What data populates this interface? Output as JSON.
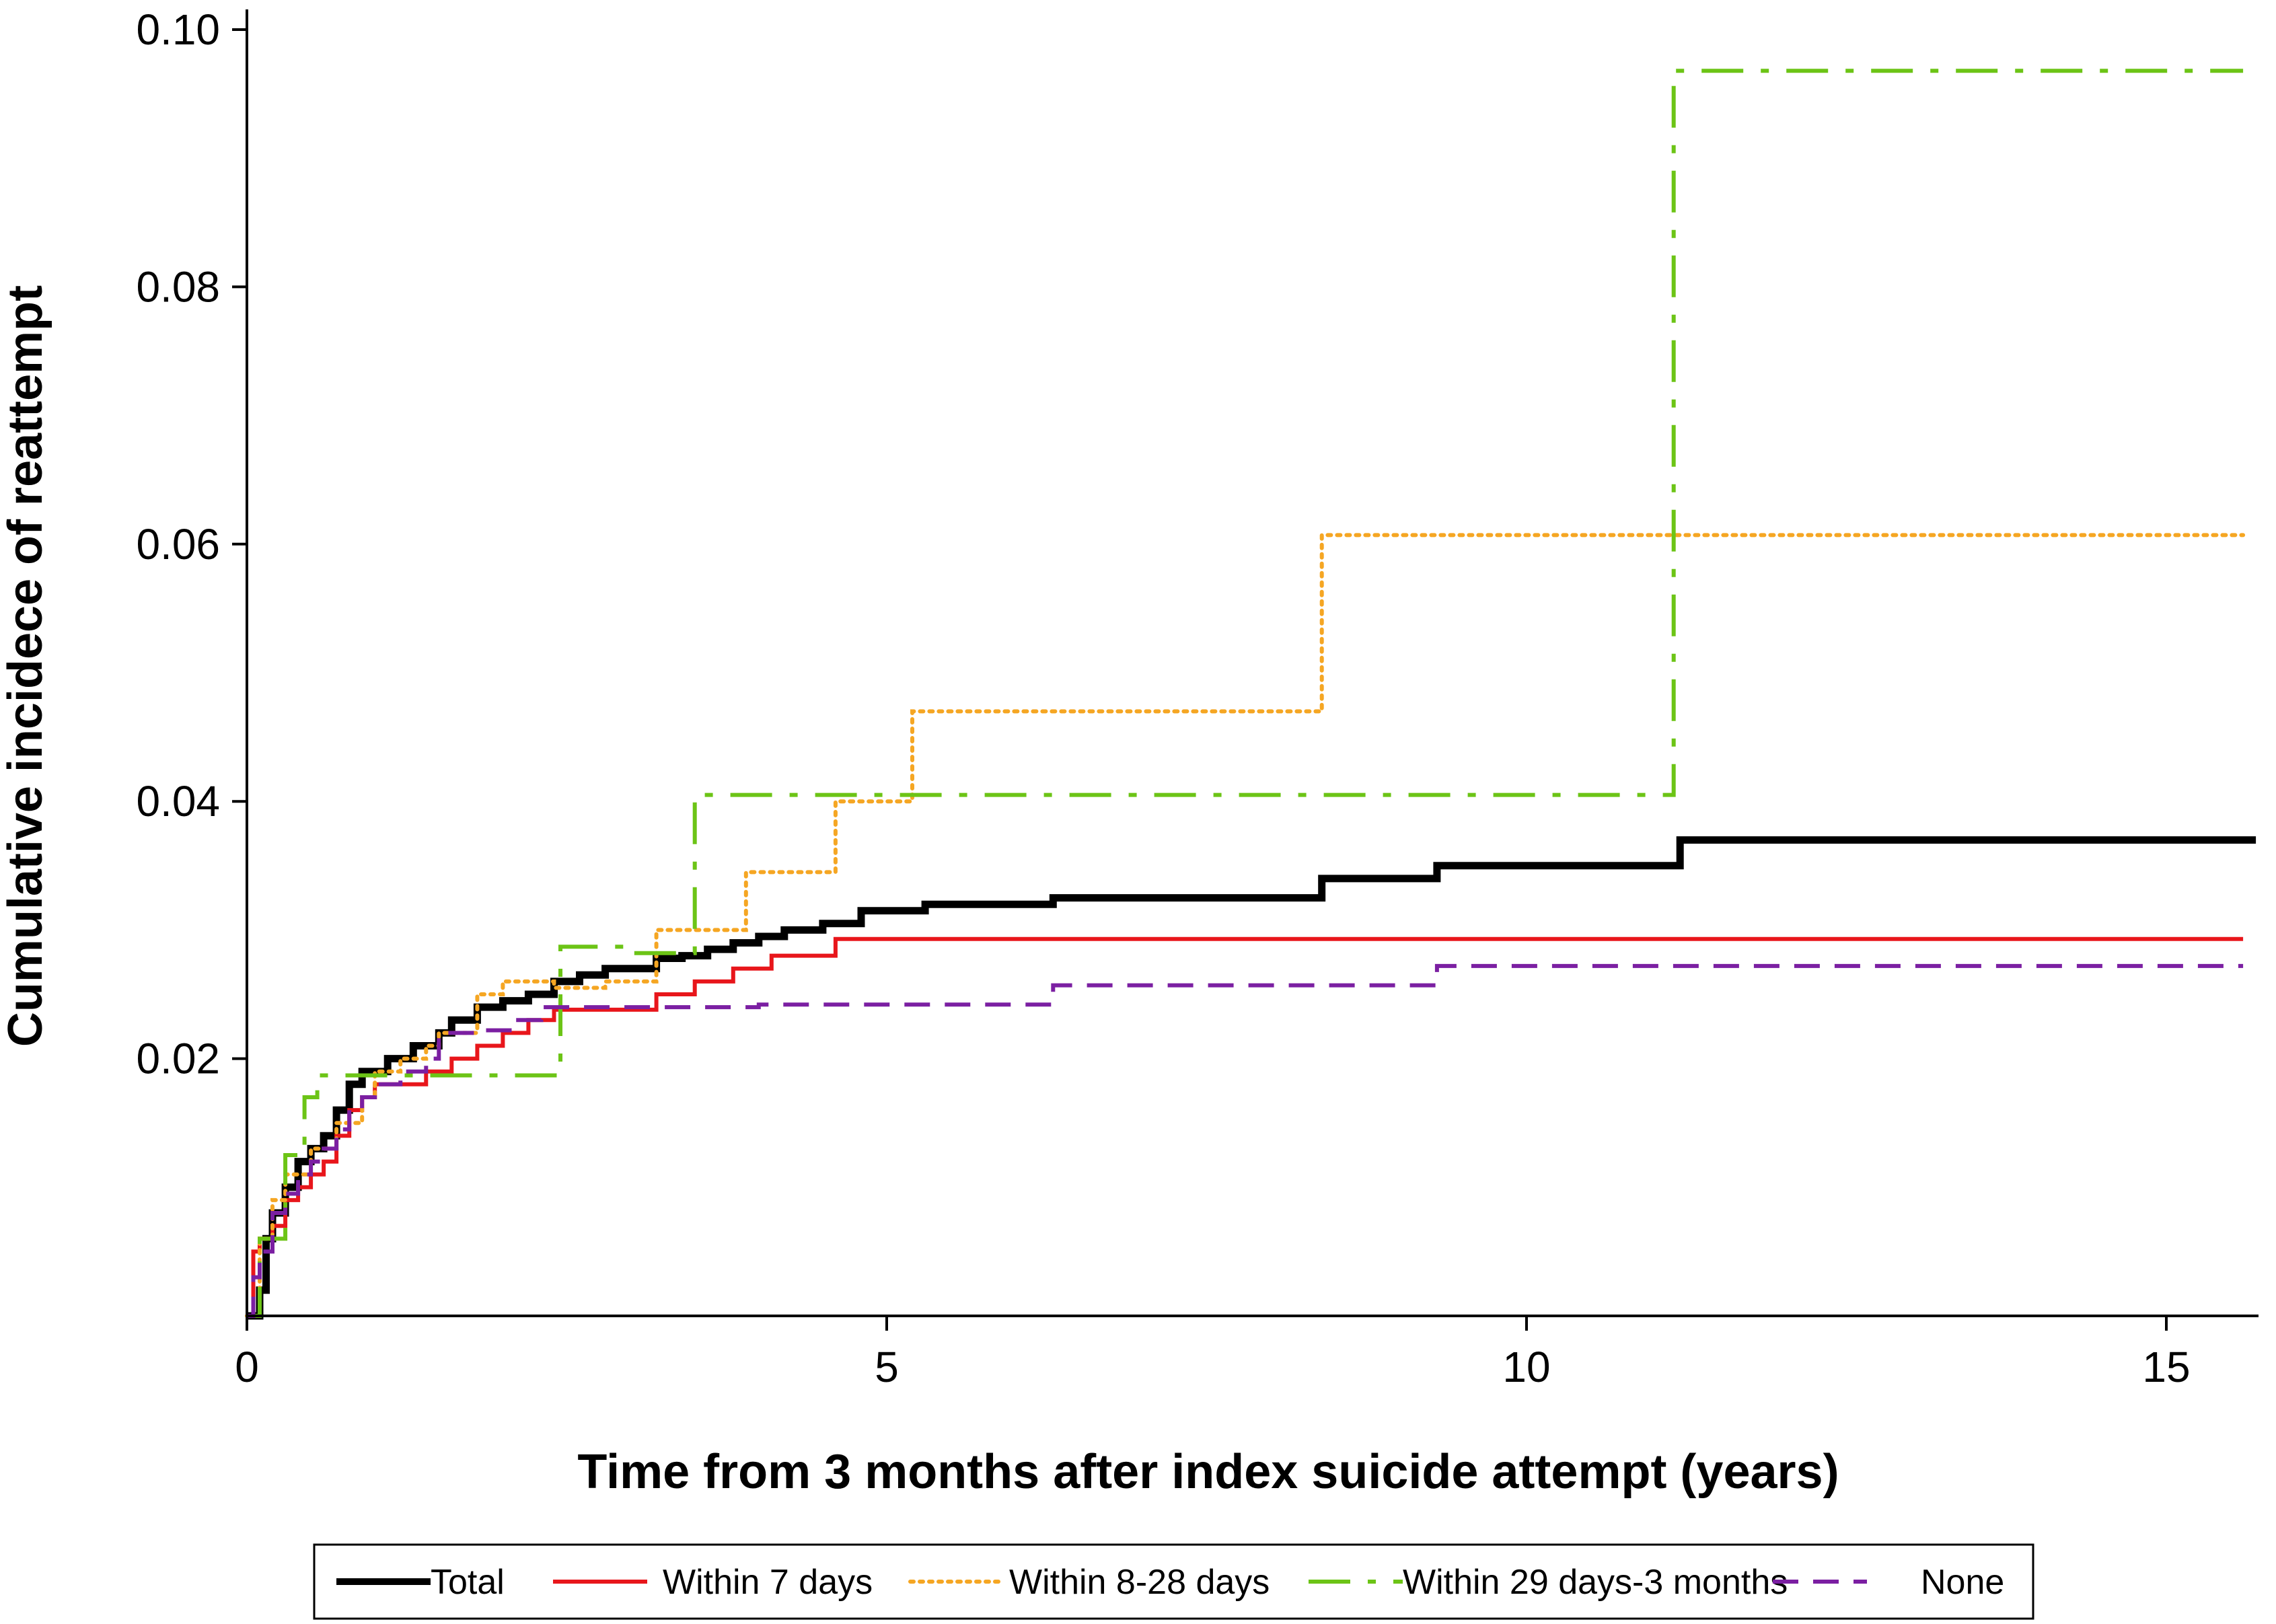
{
  "chart_data": {
    "type": "line",
    "step": true,
    "xlabel": "Time from 3 months after index suicide attempt (years)",
    "ylabel": "Cumulative incidece of reattempt",
    "xlim": [
      0,
      15.7
    ],
    "ylim": [
      0,
      0.1
    ],
    "xticks": [
      0,
      5,
      10,
      15
    ],
    "xtick_labels": [
      "0",
      "5",
      "10",
      "15"
    ],
    "yticks": [
      0.02,
      0.04,
      0.06,
      0.08,
      0.1
    ],
    "ytick_labels": [
      "0.02",
      "0.04",
      "0.06",
      "0.08",
      "0.10"
    ],
    "legend_position": "bottom",
    "series": [
      {
        "name": "Total",
        "color": "#000000",
        "style": "solid",
        "weight": "heavy",
        "points": [
          [
            0,
            0
          ],
          [
            0.1,
            0.002
          ],
          [
            0.15,
            0.006
          ],
          [
            0.2,
            0.008
          ],
          [
            0.3,
            0.01
          ],
          [
            0.4,
            0.012
          ],
          [
            0.5,
            0.013
          ],
          [
            0.6,
            0.014
          ],
          [
            0.7,
            0.016
          ],
          [
            0.8,
            0.018
          ],
          [
            0.9,
            0.019
          ],
          [
            1.0,
            0.019
          ],
          [
            1.1,
            0.02
          ],
          [
            1.3,
            0.021
          ],
          [
            1.5,
            0.022
          ],
          [
            1.6,
            0.023
          ],
          [
            1.8,
            0.024
          ],
          [
            2.0,
            0.0245
          ],
          [
            2.2,
            0.025
          ],
          [
            2.4,
            0.026
          ],
          [
            2.6,
            0.0265
          ],
          [
            2.8,
            0.027
          ],
          [
            3.2,
            0.0278
          ],
          [
            3.4,
            0.028
          ],
          [
            3.6,
            0.0285
          ],
          [
            3.8,
            0.029
          ],
          [
            4.0,
            0.0295
          ],
          [
            4.2,
            0.03
          ],
          [
            4.5,
            0.0305
          ],
          [
            4.8,
            0.0315
          ],
          [
            5.3,
            0.032
          ],
          [
            6.3,
            0.0325
          ],
          [
            8.4,
            0.034
          ],
          [
            9.3,
            0.035
          ],
          [
            11.2,
            0.037
          ],
          [
            15.7,
            0.037
          ]
        ]
      },
      {
        "name": "Within 7 days",
        "color": "#e8161b",
        "style": "solid",
        "weight": "normal",
        "points": [
          [
            0,
            0
          ],
          [
            0.05,
            0.005
          ],
          [
            0.1,
            0.006
          ],
          [
            0.2,
            0.007
          ],
          [
            0.3,
            0.009
          ],
          [
            0.4,
            0.01
          ],
          [
            0.5,
            0.011
          ],
          [
            0.6,
            0.012
          ],
          [
            0.7,
            0.014
          ],
          [
            0.8,
            0.016
          ],
          [
            0.9,
            0.017
          ],
          [
            1.0,
            0.018
          ],
          [
            1.4,
            0.019
          ],
          [
            1.6,
            0.02
          ],
          [
            1.8,
            0.021
          ],
          [
            2.0,
            0.022
          ],
          [
            2.2,
            0.023
          ],
          [
            2.4,
            0.0238
          ],
          [
            3.2,
            0.025
          ],
          [
            3.5,
            0.026
          ],
          [
            3.8,
            0.027
          ],
          [
            4.1,
            0.028
          ],
          [
            4.6,
            0.0293
          ],
          [
            15.6,
            0.0293
          ]
        ]
      },
      {
        "name": "Within 8-28 days",
        "color": "#f5a623",
        "style": "dotted",
        "weight": "normal",
        "points": [
          [
            0,
            0
          ],
          [
            0.1,
            0.006
          ],
          [
            0.2,
            0.009
          ],
          [
            0.3,
            0.011
          ],
          [
            0.5,
            0.013
          ],
          [
            0.7,
            0.015
          ],
          [
            0.9,
            0.017
          ],
          [
            1.0,
            0.019
          ],
          [
            1.2,
            0.02
          ],
          [
            1.4,
            0.021
          ],
          [
            1.5,
            0.022
          ],
          [
            1.8,
            0.025
          ],
          [
            2.0,
            0.026
          ],
          [
            2.4,
            0.0255
          ],
          [
            2.8,
            0.026
          ],
          [
            3.2,
            0.03
          ],
          [
            3.9,
            0.0345
          ],
          [
            4.6,
            0.04
          ],
          [
            5.2,
            0.047
          ],
          [
            8.4,
            0.0607
          ],
          [
            15.6,
            0.0607
          ]
        ]
      },
      {
        "name": "Within 29 days-3 months",
        "color": "#6cc416",
        "style": "dashdot",
        "weight": "normal",
        "points": [
          [
            0,
            0
          ],
          [
            0.1,
            0.006
          ],
          [
            0.3,
            0.0125
          ],
          [
            0.45,
            0.017
          ],
          [
            0.55,
            0.0187
          ],
          [
            2.45,
            0.0287
          ],
          [
            3.0,
            0.0282
          ],
          [
            3.5,
            0.0405
          ],
          [
            11.15,
            0.0968
          ],
          [
            15.6,
            0.0968
          ]
        ]
      },
      {
        "name": "None",
        "color": "#7b1fa2",
        "style": "dashed",
        "weight": "normal",
        "points": [
          [
            0,
            0
          ],
          [
            0.05,
            0.003
          ],
          [
            0.1,
            0.005
          ],
          [
            0.2,
            0.008
          ],
          [
            0.3,
            0.0095
          ],
          [
            0.4,
            0.011
          ],
          [
            0.5,
            0.012
          ],
          [
            0.6,
            0.013
          ],
          [
            0.7,
            0.0145
          ],
          [
            0.8,
            0.016
          ],
          [
            0.9,
            0.017
          ],
          [
            1.0,
            0.018
          ],
          [
            1.2,
            0.019
          ],
          [
            1.4,
            0.02
          ],
          [
            1.5,
            0.022
          ],
          [
            1.8,
            0.0222
          ],
          [
            2.1,
            0.023
          ],
          [
            2.3,
            0.024
          ],
          [
            4.0,
            0.0242
          ],
          [
            6.3,
            0.0257
          ],
          [
            9.3,
            0.0272
          ],
          [
            15.6,
            0.0272
          ]
        ]
      }
    ]
  }
}
